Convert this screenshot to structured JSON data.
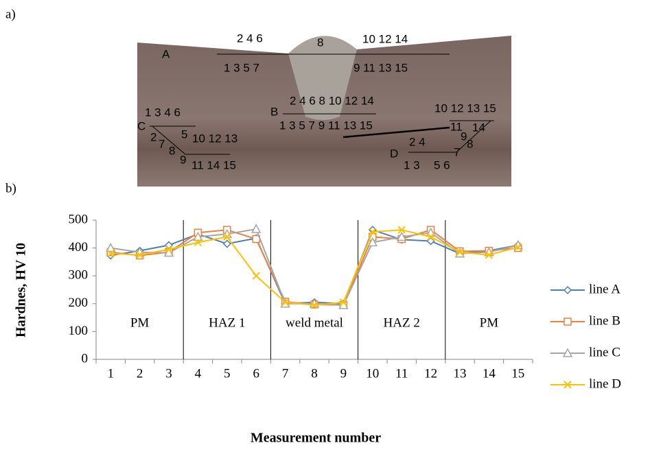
{
  "figure_a": {
    "label": "a)",
    "annotations": [
      "A",
      "2 4 6",
      "8",
      "10 12 14",
      "1 3 5 7",
      "9 11 13 15",
      "B",
      "2 4 6 8 10 12 14",
      "1 3 5 7 9 11 13 15",
      "C",
      "1 3 4 6",
      "5",
      "2",
      "7",
      "8",
      "9",
      "10 12 13",
      "11 14 15",
      "D",
      "2 4",
      "1 3",
      "5 6",
      "10 12 13 15",
      "11",
      "14",
      "9",
      "8",
      "7"
    ]
  },
  "figure_b": {
    "label": "b)"
  },
  "chart_data": {
    "type": "line",
    "xlabel": "Measurement number",
    "ylabel": "Hardnes, HV 10",
    "categories": [
      1,
      2,
      3,
      4,
      5,
      6,
      7,
      8,
      9,
      10,
      11,
      12,
      13,
      14,
      15
    ],
    "regions": [
      "PM",
      "HAZ 1",
      "weld metal",
      "HAZ 2",
      "PM"
    ],
    "ylim": [
      0,
      500
    ],
    "yticks": [
      0,
      100,
      200,
      300,
      400,
      500
    ],
    "grid": false,
    "legend": "right",
    "series": [
      {
        "name": "line A",
        "color": "#4a7ebb",
        "marker": "diamond",
        "values": [
          373,
          390,
          410,
          450,
          415,
          435,
          200,
          205,
          200,
          465,
          430,
          425,
          380,
          390,
          410
        ]
      },
      {
        "name": "line B",
        "color": "#f07f3c",
        "marker": "square",
        "values": [
          385,
          373,
          385,
          455,
          465,
          432,
          207,
          197,
          195,
          440,
          432,
          465,
          388,
          390,
          400
        ]
      },
      {
        "name": "line C",
        "color": "#a5a5a5",
        "marker": "triangle",
        "values": [
          400,
          385,
          383,
          440,
          450,
          468,
          200,
          200,
          195,
          420,
          440,
          455,
          380,
          385,
          410
        ]
      },
      {
        "name": "line D",
        "color": "#ffc000",
        "marker": "x",
        "values": [
          380,
          375,
          395,
          420,
          440,
          300,
          205,
          195,
          205,
          458,
          465,
          440,
          385,
          375,
          403
        ]
      }
    ]
  }
}
